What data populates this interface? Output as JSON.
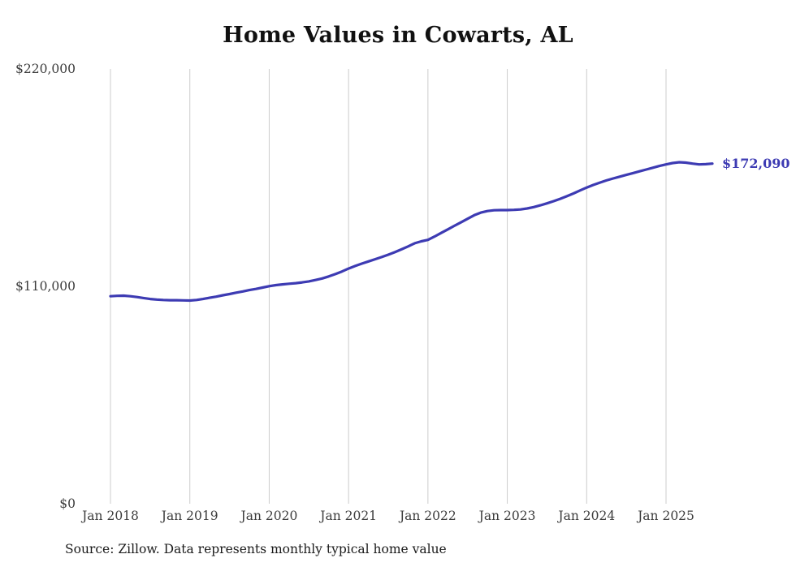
{
  "chart_data": {
    "type": "line",
    "title": "Home Values in Cowarts, AL",
    "source_note": "Source: Zillow. Data represents monthly typical home value",
    "end_label": "$172,090",
    "latest_value": 172090,
    "frequency": "monthly",
    "x_start": "Jan 2018",
    "x_end": "Aug 2025",
    "x_tick_labels": [
      "Jan 2018",
      "Jan 2019",
      "Jan 2020",
      "Jan 2021",
      "Jan 2022",
      "Jan 2023",
      "Jan 2024",
      "Jan 2025"
    ],
    "y_tick_labels": [
      "$0",
      "$110,000",
      "$220,000"
    ],
    "y_tick_values": [
      0,
      110000,
      220000
    ],
    "ylim": [
      0,
      220000
    ],
    "grid": "vertical-only",
    "legend": "none",
    "colors": {
      "line": "#3d3bb3",
      "grid": "#cccccc",
      "title_text": "#111111",
      "axis_text": "#3c3c3c",
      "end_label_text": "#3d3bb3",
      "source_text": "#1a1a1a",
      "background": "#ffffff"
    },
    "series": [
      {
        "name": "Typical home value (USD)",
        "start_month": "2018-01",
        "values": [
          105000,
          105200,
          105300,
          105000,
          104600,
          104100,
          103600,
          103300,
          103100,
          103000,
          103000,
          102900,
          102800,
          103100,
          103600,
          104200,
          104800,
          105500,
          106100,
          106800,
          107400,
          108100,
          108700,
          109400,
          110100,
          110600,
          111000,
          111300,
          111600,
          112000,
          112500,
          113200,
          114000,
          115000,
          116200,
          117500,
          119000,
          120300,
          121500,
          122600,
          123700,
          124800,
          126000,
          127300,
          128700,
          130200,
          131800,
          132800,
          133500,
          135200,
          137000,
          138800,
          140600,
          142400,
          144200,
          146000,
          147300,
          148100,
          148500,
          148600,
          148600,
          148700,
          148900,
          149400,
          150100,
          151000,
          152000,
          153100,
          154300,
          155600,
          157000,
          158500,
          160000,
          161300,
          162500,
          163600,
          164600,
          165500,
          166400,
          167300,
          168200,
          169100,
          170000,
          170900,
          171700,
          172400,
          172800,
          172600,
          172100,
          171700,
          171800,
          172090
        ]
      }
    ]
  }
}
